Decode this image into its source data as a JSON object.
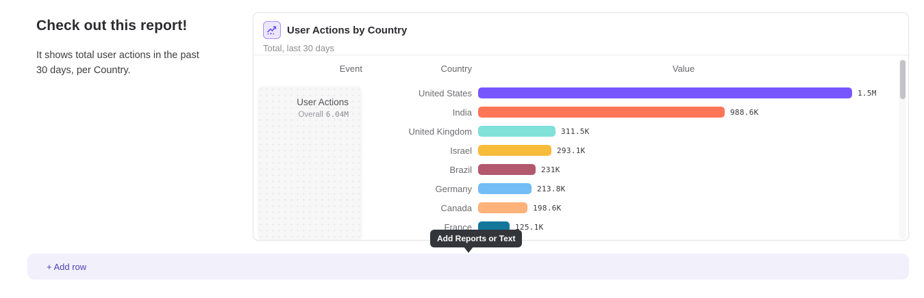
{
  "intro": {
    "heading": "Check out this report!",
    "body": "It shows total user actions in the past 30 days, per Country."
  },
  "report_card": {
    "title": "User Actions by Country",
    "subtitle": "Total, last 30 days",
    "icon": "line-chart-icon",
    "columns": {
      "event": "Event",
      "country": "Country",
      "value": "Value"
    },
    "event_block": {
      "name": "User Actions",
      "overall_label": "Overall",
      "overall_value": "6.04M"
    },
    "chart_data": {
      "type": "bar",
      "orientation": "horizontal",
      "title": "User Actions by Country",
      "subtitle": "Total, last 30 days",
      "categories": [
        "United States",
        "India",
        "United Kingdom",
        "Israel",
        "Brazil",
        "Germany",
        "Canada",
        "France"
      ],
      "values": [
        1500000,
        988600,
        311500,
        293100,
        231000,
        213800,
        198600,
        125100
      ],
      "value_labels": [
        "1.5M",
        "988.6K",
        "311.5K",
        "293.1K",
        "231K",
        "213.8K",
        "198.6K",
        "125.1K"
      ],
      "colors": [
        "#7856ff",
        "#ff7557",
        "#80e1d9",
        "#f8bc3b",
        "#b2596e",
        "#72bef4",
        "#ffb27a",
        "#12779b"
      ],
      "xlim": [
        0,
        1500000
      ],
      "grid": false,
      "legend": false,
      "overall_total": "6.04M"
    }
  },
  "tooltip": {
    "label": "Add Reports or Text"
  },
  "add_row": {
    "label": "+ Add row"
  },
  "theme": {
    "accent": "#4f43b5",
    "icon_purple": "#6a4df5",
    "tooltip_bg": "#32363b"
  }
}
